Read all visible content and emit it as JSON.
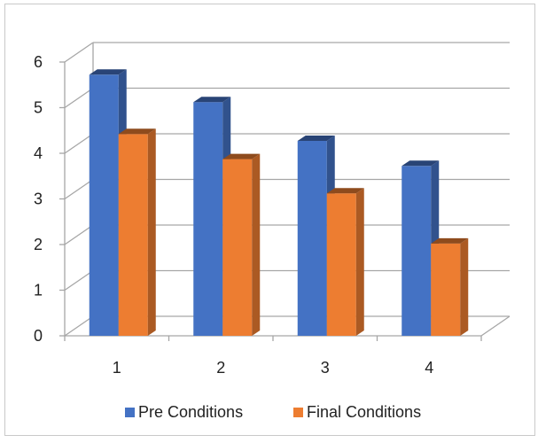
{
  "chart_data": {
    "type": "bar",
    "style": "3d-clustered-column",
    "categories": [
      "1",
      "2",
      "3",
      "4"
    ],
    "series": [
      {
        "name": "Pre Conditions",
        "values": [
          5.8,
          5.2,
          4.35,
          3.8
        ],
        "color": "#4472C4"
      },
      {
        "name": "Final Conditions",
        "values": [
          4.5,
          3.95,
          3.2,
          2.1
        ],
        "color": "#ED7D31"
      }
    ],
    "ylim": [
      0,
      6
    ],
    "yticks": [
      "0",
      "1",
      "2",
      "3",
      "4",
      "5",
      "6"
    ],
    "grid": true,
    "legend_position": "bottom"
  }
}
